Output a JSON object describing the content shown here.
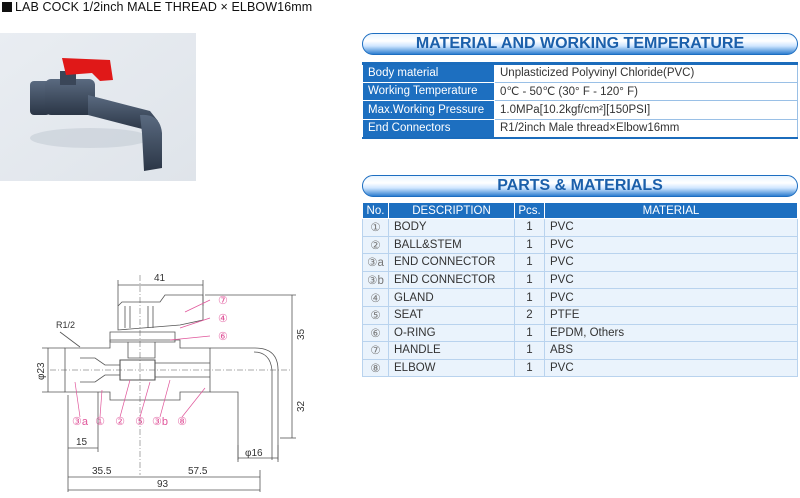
{
  "title": "LAB COCK 1/2inch MALE THREAD × ELBOW16mm",
  "spec_section": {
    "heading": "MATERIAL AND WORKING TEMPERATURE",
    "rows": [
      {
        "label": "Body material",
        "value": "Unplasticized Polyvinyl Chloride(PVC)"
      },
      {
        "label": "Working Temperature",
        "value": "0℃ - 50℃ (30° F - 120° F)"
      },
      {
        "label": "Max.Working Pressure",
        "value": "1.0MPa[10.2kgf/cm²][150PSI]"
      },
      {
        "label": "End Connectors",
        "value": "R1/2inch Male thread×Elbow16mm"
      }
    ]
  },
  "parts_section": {
    "heading": "PARTS & MATERIALS",
    "columns": [
      "No.",
      "DESCRIPTION",
      "Pcs.",
      "MATERIAL"
    ],
    "rows": [
      {
        "no": "①",
        "description": "BODY",
        "pcs": "1",
        "material": "PVC"
      },
      {
        "no": "②",
        "description": "BALL&STEM",
        "pcs": "1",
        "material": "PVC"
      },
      {
        "no": "③a",
        "description": "END CONNECTOR",
        "pcs": "1",
        "material": "PVC"
      },
      {
        "no": "③b",
        "description": "END CONNECTOR",
        "pcs": "1",
        "material": "PVC"
      },
      {
        "no": "④",
        "description": "GLAND",
        "pcs": "1",
        "material": "PVC"
      },
      {
        "no": "⑤",
        "description": "SEAT",
        "pcs": "2",
        "material": "PTFE"
      },
      {
        "no": "⑥",
        "description": "O-RING",
        "pcs": "1",
        "material": "EPDM, Others"
      },
      {
        "no": "⑦",
        "description": "HANDLE",
        "pcs": "1",
        "material": "ABS"
      },
      {
        "no": "⑧",
        "description": "ELBOW",
        "pcs": "1",
        "material": "PVC"
      }
    ]
  },
  "drawing": {
    "dims": {
      "width_top": "41",
      "thread": "R1/2",
      "dia_body": "φ23",
      "height_top": "35",
      "height_bottom": "32",
      "thread_len": "15",
      "left_len": "35.5",
      "right_len": "57.5",
      "total_len": "93",
      "dia_outlet": "φ16"
    },
    "callouts": [
      "③a",
      "①",
      "②",
      "⑤",
      "③b",
      "⑧",
      "⑦",
      "④",
      "⑥"
    ]
  },
  "colors": {
    "accent": "#1d6fc0",
    "callout": "#e0559a",
    "handle": "#e01818",
    "body": "#3b4a5e"
  }
}
